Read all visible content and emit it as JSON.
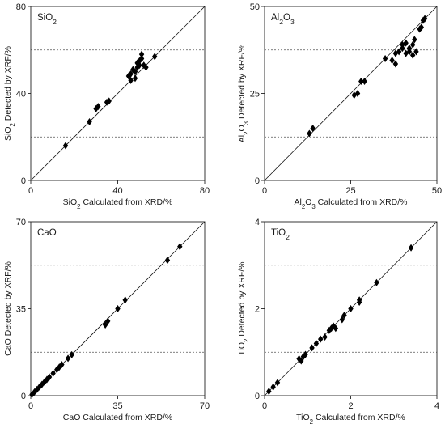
{
  "chart_data": [
    {
      "type": "scatter",
      "title": "SiO2",
      "xlabel": "SiO2 Calculated from XRD/%",
      "ylabel": "SiO2 Detected by XRF/%",
      "xlim": [
        0,
        80
      ],
      "ylim": [
        0,
        80
      ],
      "xticks": [
        "0",
        "40",
        "80"
      ],
      "yticks": [
        "0",
        "40",
        "80"
      ],
      "grid_y": [
        20,
        60
      ],
      "reference_line": "y = x",
      "points": [
        [
          16,
          16
        ],
        [
          27,
          27
        ],
        [
          30,
          33
        ],
        [
          31,
          34
        ],
        [
          35,
          36
        ],
        [
          36,
          36.5
        ],
        [
          45,
          48
        ],
        [
          46,
          46
        ],
        [
          46,
          49
        ],
        [
          47,
          51
        ],
        [
          48,
          47
        ],
        [
          48,
          50
        ],
        [
          49,
          52
        ],
        [
          49,
          54
        ],
        [
          50,
          53
        ],
        [
          50,
          55
        ],
        [
          51,
          56
        ],
        [
          51,
          58
        ],
        [
          52,
          53
        ],
        [
          53,
          52
        ],
        [
          57,
          57
        ]
      ]
    },
    {
      "type": "scatter",
      "title": "Al2O3",
      "xlabel": "Al2O3 Calculated from XRD/%",
      "ylabel": "Al2O3 Detected by XRF/%",
      "xlim": [
        0,
        50
      ],
      "ylim": [
        0,
        50
      ],
      "xticks": [
        "0",
        "25",
        "50"
      ],
      "yticks": [
        "0",
        "25",
        "50"
      ],
      "grid_y": [
        12.5,
        37.5
      ],
      "reference_line": "y = x",
      "points": [
        [
          13,
          13.5
        ],
        [
          14,
          15
        ],
        [
          26,
          24.5
        ],
        [
          27,
          25
        ],
        [
          28,
          28.5
        ],
        [
          29,
          28.5
        ],
        [
          35,
          35
        ],
        [
          37,
          34.5
        ],
        [
          38,
          33.5
        ],
        [
          38,
          36.5
        ],
        [
          39,
          37
        ],
        [
          40,
          38
        ],
        [
          40,
          39
        ],
        [
          41,
          36.5
        ],
        [
          41,
          39.5
        ],
        [
          42,
          37
        ],
        [
          42,
          38
        ],
        [
          43,
          36
        ],
        [
          43,
          39
        ],
        [
          43.5,
          40.5
        ],
        [
          44,
          37
        ],
        [
          45,
          43.5
        ],
        [
          45.5,
          44
        ],
        [
          46,
          46
        ],
        [
          46.5,
          46.5
        ]
      ]
    },
    {
      "type": "scatter",
      "title": "CaO",
      "xlabel": "CaO Calculated from XRD/%",
      "ylabel": "CaO Detected by XRF/%",
      "xlim": [
        0,
        70
      ],
      "ylim": [
        0,
        70
      ],
      "xticks": [
        "0",
        "35",
        "70"
      ],
      "yticks": [
        "0",
        "35",
        "70"
      ],
      "grid_y": [
        17.5,
        52.5
      ],
      "reference_line": "y = x",
      "points": [
        [
          0.5,
          0.5
        ],
        [
          1.5,
          1.5
        ],
        [
          2.5,
          2.5
        ],
        [
          3.5,
          3.5
        ],
        [
          4.5,
          4.5
        ],
        [
          5.5,
          5.5
        ],
        [
          6.5,
          6.5
        ],
        [
          7.5,
          7.5
        ],
        [
          9,
          9
        ],
        [
          10.5,
          10.5
        ],
        [
          11.5,
          11.5
        ],
        [
          12.5,
          12.5
        ],
        [
          15,
          15
        ],
        [
          16.5,
          16.5
        ],
        [
          30,
          28.5
        ],
        [
          31,
          30
        ],
        [
          35,
          35
        ],
        [
          38,
          38.5
        ],
        [
          55,
          54.5
        ],
        [
          60,
          60
        ]
      ]
    },
    {
      "type": "scatter",
      "title": "TiO2",
      "xlabel": "TiO2 Calculated from XRD/%",
      "ylabel": "TiO2 Detected by XRF/%",
      "xlim": [
        0,
        4
      ],
      "ylim": [
        0,
        4
      ],
      "xticks": [
        "0",
        "2",
        "4"
      ],
      "yticks": [
        "0",
        "2",
        "4"
      ],
      "grid_y": [
        1,
        3
      ],
      "reference_line": "y = x",
      "points": [
        [
          0.1,
          0.1
        ],
        [
          0.2,
          0.2
        ],
        [
          0.3,
          0.3
        ],
        [
          0.8,
          0.85
        ],
        [
          0.85,
          0.8
        ],
        [
          0.9,
          0.9
        ],
        [
          0.95,
          0.95
        ],
        [
          1.1,
          1.1
        ],
        [
          1.2,
          1.2
        ],
        [
          1.3,
          1.3
        ],
        [
          1.4,
          1.35
        ],
        [
          1.5,
          1.5
        ],
        [
          1.55,
          1.55
        ],
        [
          1.6,
          1.6
        ],
        [
          1.65,
          1.55
        ],
        [
          1.8,
          1.75
        ],
        [
          1.85,
          1.85
        ],
        [
          2.0,
          2.0
        ],
        [
          2.2,
          2.15
        ],
        [
          2.2,
          2.2
        ],
        [
          2.6,
          2.6
        ],
        [
          3.4,
          3.4
        ]
      ]
    }
  ]
}
